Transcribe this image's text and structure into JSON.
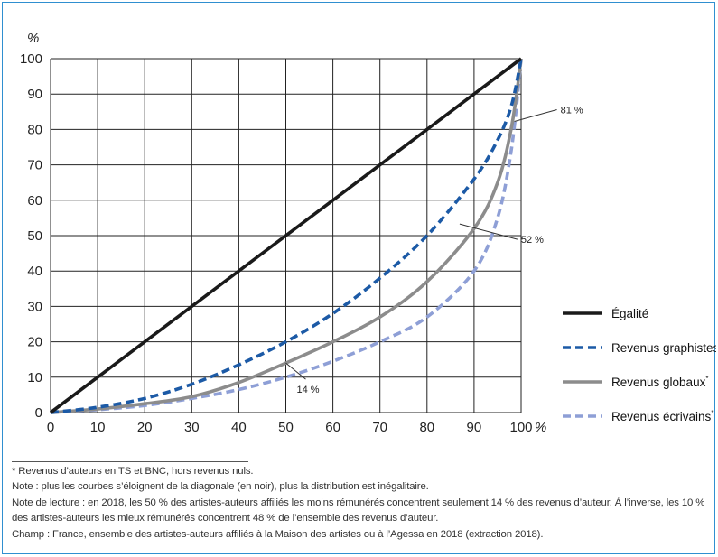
{
  "chart_data": {
    "type": "line",
    "y_unit_label": "%",
    "x_unit_label": "%",
    "xlim": [
      0,
      100
    ],
    "ylim": [
      0,
      100
    ],
    "x_ticks": [
      "0",
      "10",
      "20",
      "30",
      "40",
      "50",
      "60",
      "70",
      "80",
      "90",
      "100"
    ],
    "y_ticks": [
      "0",
      "10",
      "20",
      "30",
      "40",
      "50",
      "60",
      "70",
      "80",
      "90",
      "100"
    ],
    "grid": true,
    "legend_position": "right",
    "series": [
      {
        "name": "Égalité",
        "color": "#1a1a1a",
        "dash": "solid",
        "x": [
          0,
          100
        ],
        "y": [
          0,
          100
        ]
      },
      {
        "name": "Revenus graphistes",
        "sup": "*",
        "color": "#1c5aa6",
        "dash": "dashed",
        "x": [
          0,
          10,
          20,
          30,
          40,
          50,
          60,
          70,
          80,
          90,
          95,
          98,
          100
        ],
        "y": [
          0,
          1.5,
          4,
          8,
          13.5,
          20,
          28,
          38,
          50,
          66,
          77,
          87,
          100
        ]
      },
      {
        "name": "Revenus globaux",
        "sup": "*",
        "color": "#8c8c8c",
        "dash": "solid",
        "x": [
          0,
          10,
          20,
          30,
          40,
          50,
          60,
          70,
          80,
          90,
          95,
          98,
          100
        ],
        "y": [
          0,
          1,
          2.5,
          4.5,
          8.5,
          14,
          20,
          27,
          37,
          52,
          65,
          81,
          100
        ]
      },
      {
        "name": "Revenus écrivains",
        "sup": "*",
        "color": "#8e9fd6",
        "dash": "dashed",
        "x": [
          0,
          10,
          20,
          30,
          40,
          50,
          60,
          70,
          80,
          90,
          95,
          98,
          100
        ],
        "y": [
          0,
          0.8,
          2,
          4,
          6.5,
          10,
          14.5,
          20,
          27,
          40,
          55,
          75,
          100
        ]
      }
    ],
    "annotations": [
      {
        "text": "14 %",
        "x": 50,
        "y": 14
      },
      {
        "text": "52 %",
        "x": 90,
        "y": 52
      },
      {
        "text": "81 %",
        "x": 98,
        "y": 81
      }
    ]
  },
  "notes": {
    "footnote": "* Revenus d’auteurs en TS et BNC, hors revenus nuls.",
    "note": "Note : plus les courbes s’éloignent de la diagonale (en noir), plus la distribution est inégalitaire.",
    "reading_1": "Note de lecture : en 2018, les 50 % des artistes-auteurs affiliés les moins rémunérés concentrent seulement 14 % des revenus d’auteur. À l’inverse, les 10 %",
    "reading_2": "des artistes-auteurs les mieux rémunérés concentrent 48 % de l’ensemble des revenus d’auteur.",
    "scope": "Champ : France, ensemble des artistes-auteurs affiliés à la Maison des artistes ou à l’Agessa en 2018 (extraction 2018)."
  }
}
